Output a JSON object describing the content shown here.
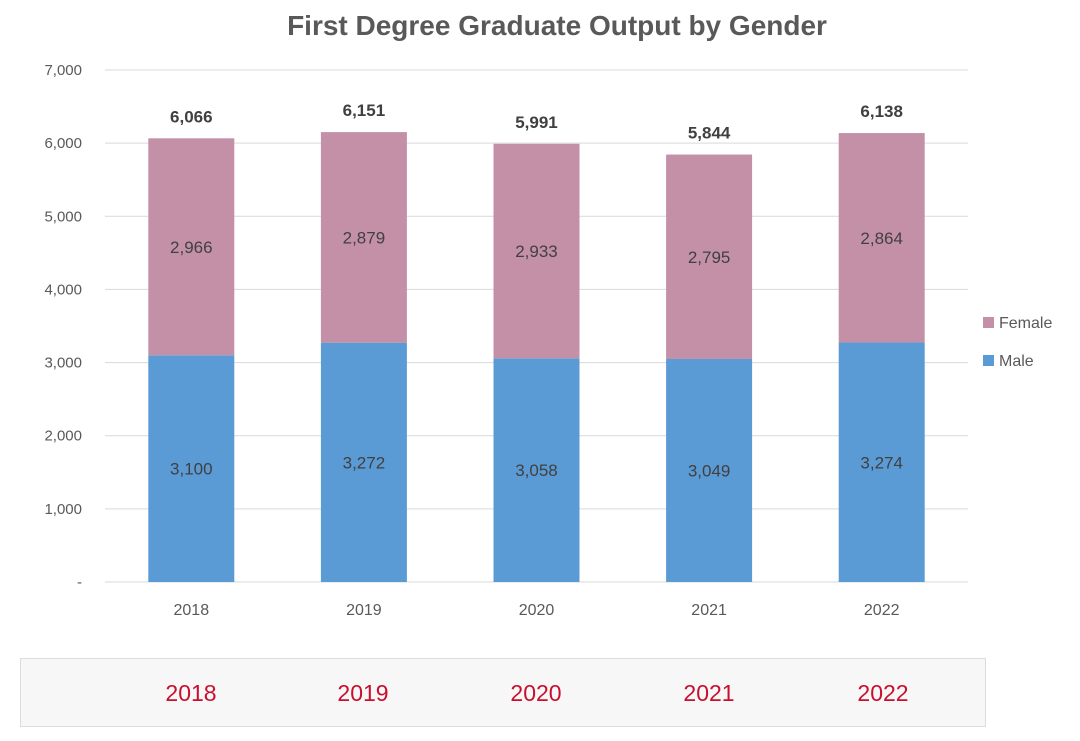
{
  "chart_data": {
    "type": "bar",
    "stacked": true,
    "title": "First Degree Graduate Output by Gender",
    "categories": [
      "2018",
      "2019",
      "2020",
      "2021",
      "2022"
    ],
    "series": [
      {
        "name": "Male",
        "values": [
          3100,
          3272,
          3058,
          3049,
          3274
        ],
        "labels": [
          "3,100",
          "3,272",
          "3,058",
          "3,049",
          "3,274"
        ]
      },
      {
        "name": "Female",
        "values": [
          2966,
          2879,
          2933,
          2795,
          2864
        ],
        "labels": [
          "2,966",
          "2,879",
          "2,933",
          "2,795",
          "2,864"
        ]
      }
    ],
    "totals": [
      6066,
      6151,
      5991,
      5844,
      6138
    ],
    "total_labels": [
      "6,066",
      "6,151",
      "5,991",
      "5,844",
      "6,138"
    ],
    "ylim": [
      0,
      7000
    ],
    "yticks": [
      0,
      1000,
      2000,
      3000,
      4000,
      5000,
      6000,
      7000
    ],
    "ytick_labels": [
      "-",
      "1,000",
      "2,000",
      "3,000",
      "4,000",
      "5,000",
      "6,000",
      "7,000"
    ],
    "grid": true,
    "legend": {
      "position": "right",
      "entries": [
        "Female",
        "Male"
      ]
    },
    "colors": {
      "Male": "#5b9bd5",
      "Female": "#c490a8"
    }
  },
  "tabs": {
    "items": [
      {
        "label": "2018"
      },
      {
        "label": "2019"
      },
      {
        "label": "2020"
      },
      {
        "label": "2021"
      },
      {
        "label": "2022"
      }
    ]
  }
}
